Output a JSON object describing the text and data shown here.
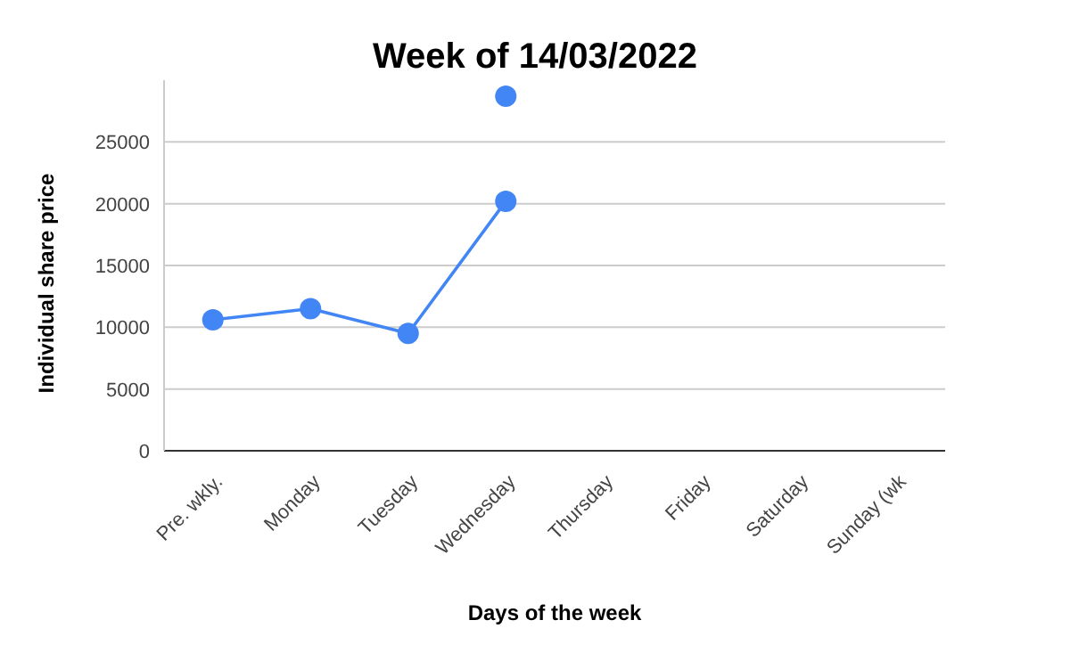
{
  "chart_data": {
    "type": "line",
    "title": "Week of 14/03/2022",
    "xlabel": "Days of the week",
    "ylabel": "Individual share price",
    "categories": [
      "Pre. wkly.",
      "Monday",
      "Tuesday",
      "Wednesday",
      "Thursday",
      "Friday",
      "Saturday",
      "Sunday (wk"
    ],
    "series": [
      {
        "color": "#4285f4",
        "values": [
          10600,
          11500,
          9500,
          20200,
          null,
          null,
          null,
          null
        ]
      },
      {
        "type": "scatter",
        "color": "#4285f4",
        "values": [
          null,
          null,
          null,
          28700,
          null,
          null,
          null,
          null
        ]
      }
    ],
    "ylim": [
      0,
      30000
    ],
    "yticks": [
      0,
      5000,
      10000,
      15000,
      20000,
      25000
    ],
    "grid": "y",
    "marker": "circle",
    "line_style": "solid"
  }
}
